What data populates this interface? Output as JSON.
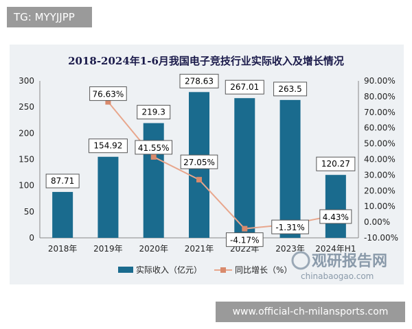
{
  "header": {
    "tag": "TG: MYYJJPP"
  },
  "footer": {
    "site": "www.official-ch-milansports.com"
  },
  "watermark": {
    "cn": "观研报告网",
    "en": "chinabaogao.com"
  },
  "chart_data": {
    "type": "bar+line",
    "title": "2018-2024年1-6月我国电子竞技行业实际收入及增长情况",
    "categories": [
      "2018年",
      "2019年",
      "2020年",
      "2021年",
      "2022年",
      "2023年",
      "2024年H1"
    ],
    "bar_series": {
      "name": "实际收入（亿元）",
      "values": [
        87.71,
        154.92,
        219.3,
        278.63,
        267.01,
        263.5,
        120.27
      ],
      "labels": [
        "87.71",
        "154.92",
        "219.3",
        "278.63",
        "267.01",
        "263.5",
        "120.27"
      ],
      "color": "#1a6b8e"
    },
    "line_series": {
      "name": "同比增长（%）",
      "values": [
        null,
        76.63,
        41.55,
        27.05,
        -4.17,
        -1.31,
        4.43
      ],
      "labels": [
        "",
        "76.63%",
        "41.55%",
        "27.05%",
        "-4.17%",
        "-1.31%",
        "4.43%"
      ],
      "color": "#e8a68c",
      "marker_color": "#d98a6c"
    },
    "y_left": {
      "min": 0,
      "max": 300,
      "ticks": [
        "0",
        "50",
        "100",
        "150",
        "200",
        "250",
        "300"
      ]
    },
    "y_right": {
      "min": -10,
      "max": 90,
      "ticks": [
        "-10.00%",
        "0.00%",
        "10.00%",
        "20.00%",
        "30.00%",
        "40.00%",
        "50.00%",
        "60.00%",
        "70.00%",
        "80.00%",
        "90.00%"
      ]
    },
    "legend_position": "bottom",
    "grid": false
  }
}
